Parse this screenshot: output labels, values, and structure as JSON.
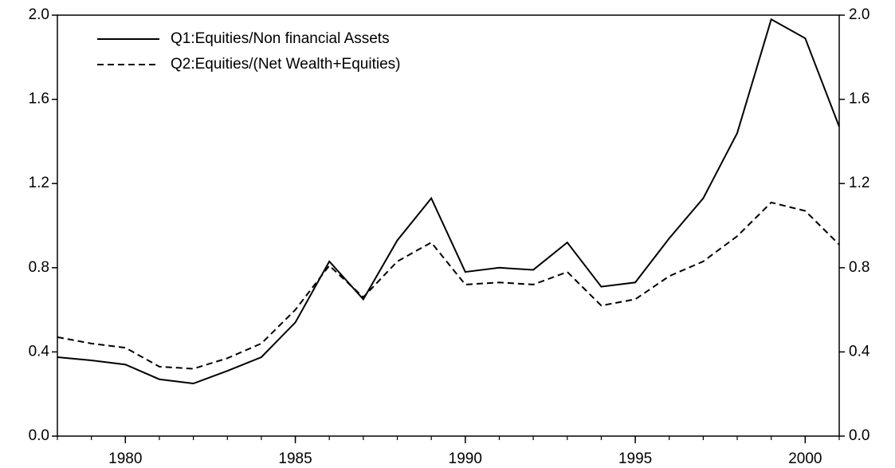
{
  "chart_data": {
    "type": "line",
    "x": [
      1978,
      1979,
      1980,
      1981,
      1982,
      1983,
      1984,
      1985,
      1986,
      1987,
      1988,
      1989,
      1990,
      1991,
      1992,
      1993,
      1994,
      1995,
      1996,
      1997,
      1998,
      1999,
      2000,
      2001
    ],
    "xlim": [
      1978,
      2001
    ],
    "xticks": [
      1980,
      1985,
      1990,
      1995,
      2000
    ],
    "ylim": [
      0,
      2
    ],
    "yticks": [
      {
        "value": 0,
        "label": "0.0"
      },
      0.4,
      0.8,
      1.2,
      1.6,
      {
        "value": 2,
        "label": "2.0"
      }
    ],
    "y2lim": [
      0,
      2
    ],
    "y2ticks": [
      {
        "value": 0,
        "label": "0.0"
      },
      0.4,
      0.8,
      1.2,
      1.6,
      {
        "value": 2,
        "label": "2.0"
      }
    ],
    "legend": "upper left",
    "series": [
      {
        "name": "Q1:Equities/Non financial Assets",
        "color": "#000000",
        "line_style": "solid",
        "values": [
          0.375,
          0.36,
          0.34,
          0.27,
          0.25,
          0.31,
          0.375,
          0.54,
          0.83,
          0.65,
          0.93,
          1.13,
          0.78,
          0.8,
          0.79,
          0.92,
          0.71,
          0.73,
          0.94,
          1.13,
          1.44,
          1.98,
          1.89,
          1.47
        ]
      },
      {
        "name": "Q2:Equities/(Net Wealth+Equities)",
        "color": "#000000",
        "line_style": "dashed",
        "values": [
          0.47,
          0.44,
          0.42,
          0.33,
          0.32,
          0.37,
          0.44,
          0.6,
          0.81,
          0.66,
          0.83,
          0.92,
          0.72,
          0.73,
          0.72,
          0.78,
          0.62,
          0.65,
          0.76,
          0.83,
          0.95,
          1.11,
          1.07,
          0.91
        ]
      }
    ]
  }
}
